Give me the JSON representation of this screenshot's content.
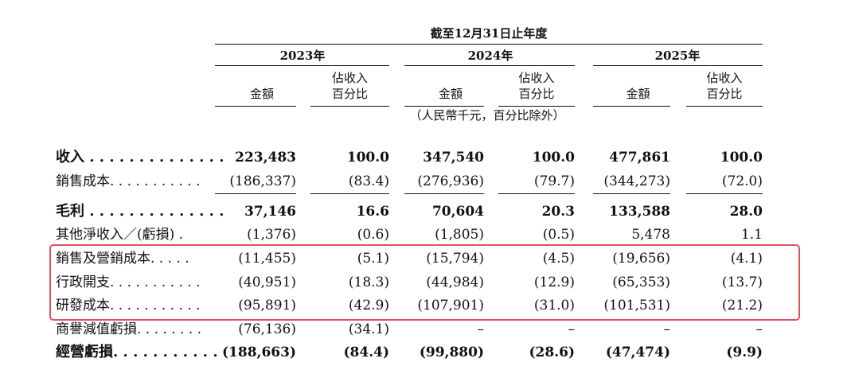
{
  "header": {
    "period": "截至12月31日止年度",
    "years": [
      "2023年",
      "2024年",
      "2025年"
    ],
    "amount_label": "金額",
    "percent_label": [
      "佔收入",
      "百分比"
    ],
    "unit_note": "（人民幣千元，百分比除外）"
  },
  "table": {
    "rows": [
      {
        "label": "收入 . . . . . . . . . . . . . .",
        "bold": true,
        "cells": [
          "223,483",
          "100.0",
          "347,540",
          "100.0",
          "477,861",
          "100.0"
        ]
      },
      {
        "label": "銷售成本. . . . . . . . . . .",
        "bold": false,
        "cells": [
          "(186,337)",
          "(83.4)",
          "(276,936)",
          "(79.7)",
          "(344,273)",
          "(72.0)"
        ]
      },
      {
        "label": "毛利 . . . . . . . . . . . . . .",
        "bold": true,
        "cells": [
          "37,146",
          "16.6",
          "70,604",
          "20.3",
          "133,588",
          "28.0"
        ]
      },
      {
        "label": "其他淨收入／(虧損) .",
        "bold": false,
        "cells": [
          "(1,376)",
          "(0.6)",
          "(1,805)",
          "(0.5)",
          "5,478",
          "1.1"
        ]
      },
      {
        "label": "銷售及營銷成本. . . . .",
        "bold": false,
        "cells": [
          "(11,455)",
          "(5.1)",
          "(15,794)",
          "(4.5)",
          "(19,656)",
          "(4.1)"
        ]
      },
      {
        "label": "行政開支. . . . . . . . . . .",
        "bold": false,
        "cells": [
          "(40,951)",
          "(18.3)",
          "(44,984)",
          "(12.9)",
          "(65,353)",
          "(13.7)"
        ]
      },
      {
        "label": "研發成本. . . . . . . . . . .",
        "bold": false,
        "cells": [
          "(95,891)",
          "(42.9)",
          "(107,901)",
          "(31.0)",
          "(101,531)",
          "(21.2)"
        ]
      },
      {
        "label": "商譽減值虧損. . . . . . . .",
        "bold": false,
        "cells": [
          "(76,136)",
          "(34.1)",
          "–",
          "–",
          "–",
          "–"
        ]
      },
      {
        "label": "經營虧損. . . . . . . . . . .",
        "bold": true,
        "cells": [
          "(188,663)",
          "(84.4)",
          "(99,880)",
          "(28.6)",
          "(47,474)",
          "(9.9)"
        ]
      }
    ]
  }
}
